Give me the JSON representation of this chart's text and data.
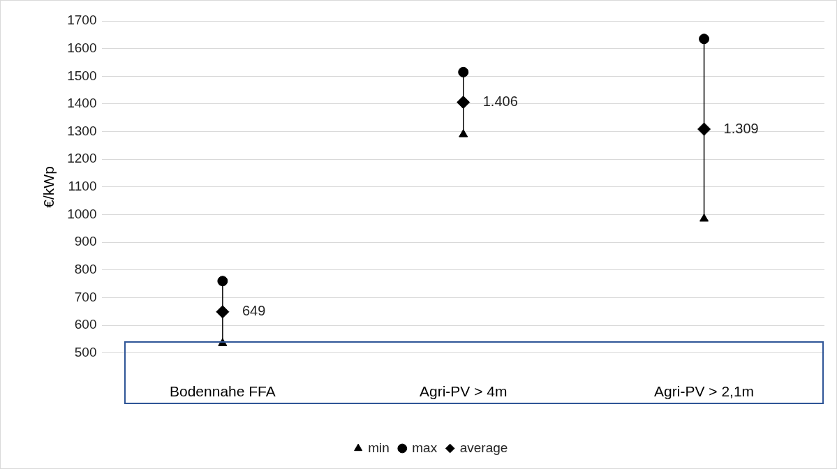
{
  "chart_data": {
    "type": "scatter",
    "ylabel": "€/kWp",
    "categories": [
      "Bodennahe FFA",
      "Agri-PV > 4m",
      "Agri-PV > 2,1m"
    ],
    "ylim": [
      500,
      1700
    ],
    "yticks": [
      500,
      600,
      700,
      800,
      900,
      1000,
      1100,
      1200,
      1300,
      1400,
      1500,
      1600,
      1700
    ],
    "grid": "y",
    "legend": "bottom",
    "series": [
      {
        "name": "min",
        "color": "#000000",
        "marker": "triangle",
        "values": [
          535,
          1290,
          985
        ]
      },
      {
        "name": "max",
        "color": "#000000",
        "marker": "circle",
        "values": [
          760,
          1515,
          1635
        ]
      },
      {
        "name": "average",
        "color": "#000000",
        "marker": "diamond",
        "values": [
          649,
          1406,
          1309
        ],
        "value_labels": [
          "649",
          "1.406",
          "1.309"
        ]
      }
    ]
  }
}
